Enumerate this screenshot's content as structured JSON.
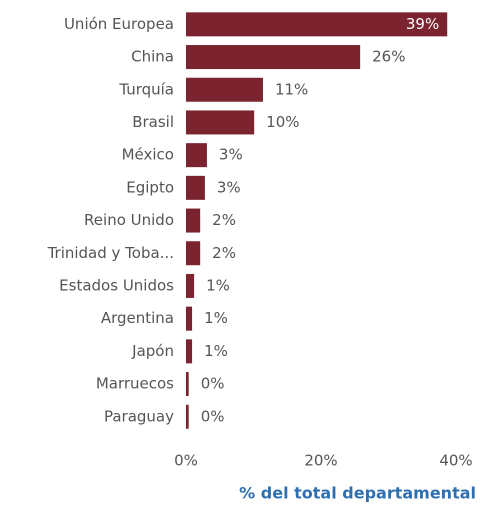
{
  "chart_data": {
    "type": "hbar",
    "categories": [
      "Unión Europea",
      "China",
      "Turquía",
      "Brasil",
      "México",
      "Egipto",
      "Reino Unido",
      "Trinidad y Toba...",
      "Estados Unidos",
      "Argentina",
      "Japón",
      "Marruecos",
      "Paraguay"
    ],
    "values": [
      38.7,
      25.8,
      11.4,
      10.1,
      3.1,
      2.8,
      2.1,
      2.1,
      1.2,
      0.9,
      0.9,
      0.4,
      0.4
    ],
    "value_labels": [
      "39%",
      "26%",
      "11%",
      "10%",
      "3%",
      "3%",
      "2%",
      "2%",
      "1%",
      "1%",
      "1%",
      "0%",
      "0%"
    ],
    "color": "#7b2430",
    "xlim": [
      0,
      40
    ],
    "xticks": [
      {
        "value": 0,
        "label": "0%"
      },
      {
        "value": 20,
        "label": "20%"
      },
      {
        "value": 40,
        "label": "40%"
      }
    ],
    "x_label": "% del total departamental"
  }
}
